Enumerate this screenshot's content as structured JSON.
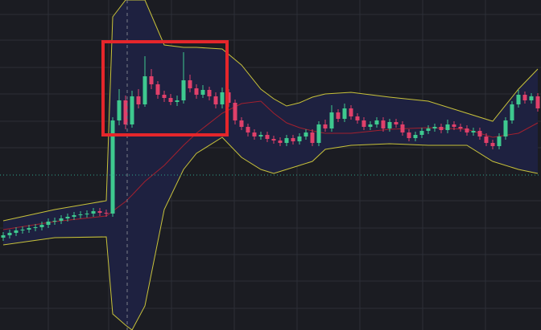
{
  "chart_data": {
    "type": "candlestick",
    "ylim": [
      0,
      411
    ],
    "up_color": "#3ec98f",
    "down_color": "#e0406a",
    "open": [
      115,
      118,
      121,
      124,
      125,
      127,
      128,
      131,
      135,
      136,
      139,
      141,
      143,
      144,
      145,
      148,
      146,
      145,
      261,
      286,
      256,
      291,
      281,
      316,
      306,
      293,
      289,
      284,
      286,
      311,
      301,
      293,
      299,
      291,
      281,
      296,
      283,
      261,
      253,
      246,
      241,
      243,
      238,
      236,
      233,
      239,
      235,
      241,
      246,
      233,
      256,
      251,
      271,
      263,
      276,
      266,
      261,
      253,
      256,
      261,
      251,
      259,
      256,
      246,
      239,
      243,
      248,
      251,
      253,
      249,
      256,
      253,
      251,
      246,
      248,
      241,
      233,
      229,
      241,
      261,
      281,
      293,
      286,
      291
    ],
    "high": [
      122,
      125,
      128,
      129,
      131,
      132,
      135,
      139,
      140,
      143,
      145,
      147,
      148,
      149,
      152,
      152,
      150,
      265,
      300,
      292,
      298,
      300,
      341,
      325,
      310,
      298,
      294,
      292,
      346,
      318,
      306,
      305,
      303,
      296,
      302,
      300,
      287,
      265,
      257,
      250,
      247,
      247,
      242,
      240,
      243,
      243,
      245,
      250,
      250,
      260,
      262,
      280,
      275,
      282,
      280,
      270,
      265,
      260,
      265,
      265,
      263,
      263,
      260,
      250,
      247,
      252,
      255,
      257,
      257,
      262,
      260,
      257,
      255,
      252,
      252,
      245,
      237,
      245,
      265,
      285,
      299,
      297,
      295,
      295
    ],
    "low": [
      111,
      114,
      117,
      120,
      121,
      123,
      124,
      127,
      131,
      132,
      135,
      137,
      139,
      140,
      141,
      142,
      141,
      141,
      255,
      250,
      252,
      276,
      278,
      300,
      288,
      284,
      280,
      279,
      282,
      296,
      288,
      289,
      286,
      276,
      276,
      278,
      256,
      249,
      241,
      237,
      237,
      234,
      232,
      229,
      229,
      231,
      231,
      237,
      229,
      229,
      247,
      247,
      259,
      259,
      262,
      257,
      249,
      249,
      252,
      247,
      247,
      252,
      242,
      235,
      235,
      239,
      244,
      247,
      245,
      245,
      249,
      247,
      242,
      242,
      237,
      229,
      225,
      225,
      237,
      257,
      277,
      282,
      282,
      272
    ],
    "close": [
      118,
      121,
      124,
      125,
      127,
      128,
      131,
      135,
      136,
      139,
      141,
      143,
      144,
      145,
      148,
      146,
      145,
      261,
      286,
      256,
      291,
      281,
      316,
      306,
      293,
      289,
      284,
      286,
      311,
      301,
      293,
      299,
      291,
      281,
      296,
      283,
      261,
      253,
      246,
      241,
      243,
      238,
      236,
      233,
      239,
      235,
      241,
      246,
      233,
      256,
      251,
      271,
      263,
      276,
      266,
      261,
      253,
      256,
      261,
      251,
      259,
      256,
      246,
      239,
      243,
      248,
      251,
      253,
      249,
      256,
      253,
      251,
      246,
      248,
      241,
      233,
      229,
      241,
      261,
      281,
      293,
      286,
      291,
      276
    ],
    "bands": {
      "x": [
        0,
        8,
        16,
        17,
        19,
        20,
        22,
        25,
        28,
        30,
        34,
        37,
        40,
        42,
        44,
        46,
        48,
        50,
        54,
        60,
        66,
        72,
        76,
        80,
        83
      ],
      "fill": "#1e2140",
      "upper": {
        "color": "#c8c23a",
        "values": [
          136,
          150,
          161,
          390,
          411,
          411,
          411,
          355,
          352,
          352,
          350,
          330,
          300,
          288,
          279,
          283,
          290,
          294,
          296,
          290,
          285,
          270,
          260,
          300,
          325
        ]
      },
      "middle": {
        "color": "#a3202e",
        "values": [
          125,
          135,
          142,
          148,
          160,
          168,
          185,
          205,
          230,
          245,
          270,
          282,
          285,
          270,
          258,
          252,
          248,
          245,
          245,
          250,
          252,
          250,
          240,
          245,
          258
        ]
      },
      "lower": {
        "color": "#c8c23a",
        "values": [
          106,
          115,
          116,
          20,
          6,
          0,
          30,
          150,
          200,
          220,
          240,
          215,
          200,
          195,
          200,
          205,
          210,
          225,
          230,
          232,
          230,
          230,
          210,
          200,
          195
        ]
      }
    }
  }
}
